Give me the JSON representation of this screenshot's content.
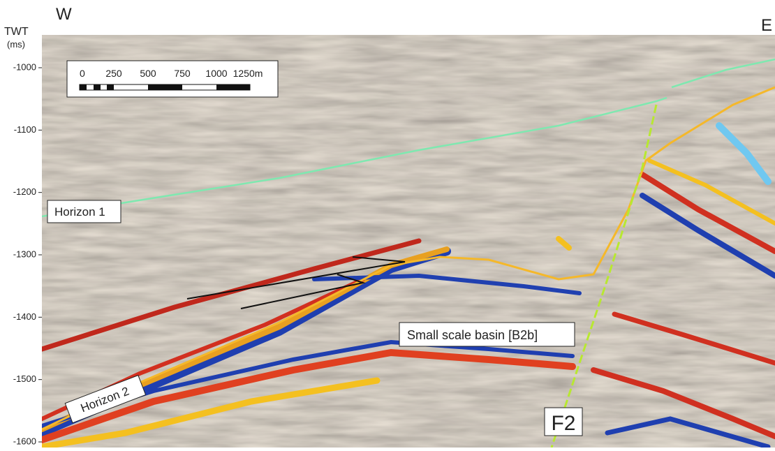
{
  "axis": {
    "title": "TWT",
    "unit": "(ms)",
    "ticks": [
      -1000,
      -1100,
      -1200,
      -1300,
      -1400,
      -1500,
      -1600
    ]
  },
  "directions": {
    "west": "W",
    "east": "E"
  },
  "scale_bar": {
    "ticks": [
      "0",
      "250",
      "500",
      "750",
      "1000",
      "1250m"
    ]
  },
  "labels": {
    "horizon_1": "Horizon 1",
    "horizon_2": "Horizon 2",
    "basin": "Small scale basin [B2b]",
    "fault": "F2"
  }
}
